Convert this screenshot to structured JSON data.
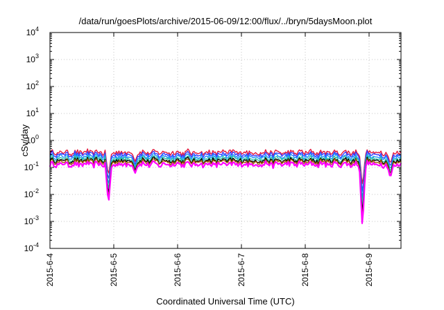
{
  "chart_data": {
    "type": "line",
    "title": "/data/run/goesPlots/archive/2015-06-09/12:00/flux/../bryn/5daysMoon.plot",
    "xlabel": "Coordinated Universal Time (UTC)",
    "ylabel": "cSv/day",
    "yscale": "log",
    "ylim": [
      0.0001,
      10000
    ],
    "xlim": [
      "2015-06-04 00:00",
      "2015-06-09 12:00"
    ],
    "grid": true,
    "y_ticks": [
      {
        "base": "10",
        "exp": "-4"
      },
      {
        "base": "10",
        "exp": "-3"
      },
      {
        "base": "10",
        "exp": "-2"
      },
      {
        "base": "10",
        "exp": "-1"
      },
      {
        "base": "10",
        "exp": "0"
      },
      {
        "base": "10",
        "exp": "1"
      },
      {
        "base": "10",
        "exp": "2"
      },
      {
        "base": "10",
        "exp": "3"
      },
      {
        "base": "10",
        "exp": "4"
      }
    ],
    "x_ticks": [
      "2015-6-4",
      "2015-6-5",
      "2015-6-6",
      "2015-6-7",
      "2015-6-8",
      "2015-6-9"
    ],
    "series": [
      {
        "color": "#e3173d",
        "base": 0.36
      },
      {
        "color": "#3a3aff",
        "base": 0.3
      },
      {
        "color": "#1e90ff",
        "base": 0.25
      },
      {
        "color": "#2ec4a6",
        "base": 0.21
      },
      {
        "color": "#000000",
        "base": 0.18
      },
      {
        "color": "#a05a00",
        "base": 0.16
      },
      {
        "color": "#ff00ff",
        "base": 0.13
      }
    ],
    "dips": [
      {
        "x": "2015-06-04 22:00",
        "y": 0.004
      },
      {
        "x": "2015-06-05 08:00",
        "y": 0.06
      },
      {
        "x": "2015-06-08 21:30",
        "y": 0.0005
      },
      {
        "x": "2015-06-09 08:00",
        "y": 0.04
      }
    ]
  }
}
